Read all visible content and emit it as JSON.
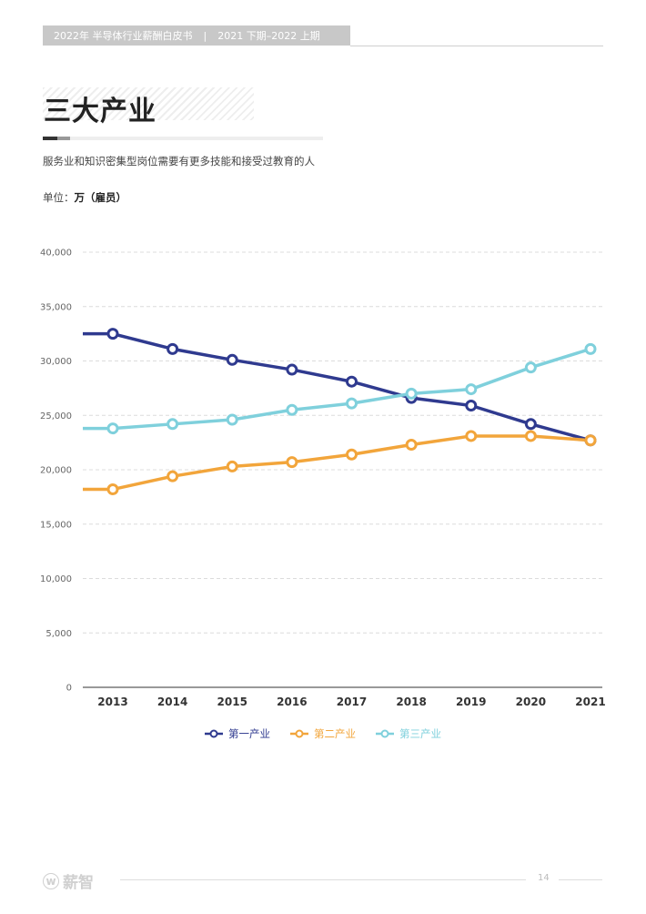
{
  "header": {
    "report": "2022年 半导体行业薪酬白皮书",
    "separator": "|",
    "period": "2021 下期–2022 上期"
  },
  "section": {
    "title": "三大产业",
    "subtitle": "服务业和知识密集型岗位需要有更多技能和接受过教育的人",
    "unit_label": "单位：",
    "unit_value": "万（雇员）"
  },
  "chart_data": {
    "type": "line",
    "x": [
      "2013",
      "2014",
      "2015",
      "2016",
      "2017",
      "2018",
      "2019",
      "2020",
      "2021"
    ],
    "ylim": [
      0,
      40000
    ],
    "yticks": [
      "0",
      "5,000",
      "10,000",
      "15,000",
      "20,000",
      "25,000",
      "30,000",
      "35,000",
      "40,000"
    ],
    "ytick_values": [
      0,
      5000,
      10000,
      15000,
      20000,
      25000,
      30000,
      35000,
      40000
    ],
    "grid": true,
    "legend_position": "bottom",
    "series": [
      {
        "name": "第一产业",
        "color": "#2f3a8f",
        "values": [
          32500,
          31100,
          30100,
          29200,
          28100,
          26600,
          25900,
          24200,
          22700
        ]
      },
      {
        "name": "第二产业",
        "color": "#f2a53b",
        "values": [
          18200,
          19400,
          20300,
          20700,
          21400,
          22300,
          23100,
          23100,
          22700
        ]
      },
      {
        "name": "第三产业",
        "color": "#7fd0dc",
        "values": [
          23800,
          24200,
          24600,
          25500,
          26100,
          27000,
          27400,
          29400,
          31100
        ]
      }
    ]
  },
  "footer": {
    "logo_text": "薪智",
    "logo_mark": "w",
    "page": "14"
  }
}
